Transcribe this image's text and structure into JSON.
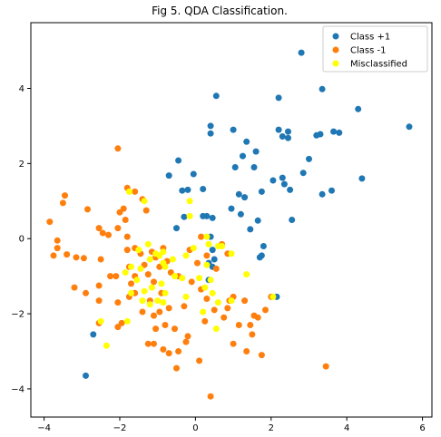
{
  "chart_data": {
    "type": "scatter",
    "title": "Fig 5. QDA Classification.",
    "xlim": [
      -4.35,
      6.25
    ],
    "ylim": [
      -4.75,
      5.75
    ],
    "xticks": [
      -4,
      -2,
      0,
      2,
      4,
      6
    ],
    "yticks": [
      -4,
      -2,
      0,
      2,
      4
    ],
    "grid": false,
    "legend_position": "top-right",
    "colors": {
      "class_pos": "#1f77b4",
      "class_neg": "#ff7f0e",
      "misclassified": "#ffff00",
      "axis": "#000000"
    },
    "series": [
      {
        "name": "Class +1",
        "color": "#1f77b4",
        "points": [
          [
            2.8,
            4.95
          ],
          [
            3.35,
            3.98
          ],
          [
            4.3,
            3.45
          ],
          [
            5.65,
            2.98
          ],
          [
            0.55,
            3.8
          ],
          [
            2.2,
            3.75
          ],
          [
            0.4,
            3.0
          ],
          [
            0.4,
            2.8
          ],
          [
            1.0,
            2.9
          ],
          [
            1.35,
            2.58
          ],
          [
            2.2,
            2.9
          ],
          [
            2.45,
            2.85
          ],
          [
            3.2,
            2.75
          ],
          [
            3.3,
            2.78
          ],
          [
            3.65,
            2.85
          ],
          [
            3.8,
            2.82
          ],
          [
            2.3,
            2.72
          ],
          [
            2.45,
            2.68
          ],
          [
            1.25,
            2.2
          ],
          [
            1.6,
            2.32
          ],
          [
            3.0,
            2.12
          ],
          [
            -0.45,
            2.08
          ],
          [
            1.05,
            1.9
          ],
          [
            1.55,
            1.9
          ],
          [
            2.85,
            1.75
          ],
          [
            -0.05,
            1.72
          ],
          [
            -0.7,
            1.68
          ],
          [
            2.3,
            1.62
          ],
          [
            2.05,
            1.55
          ],
          [
            1.75,
            1.25
          ],
          [
            2.35,
            1.45
          ],
          [
            2.5,
            1.3
          ],
          [
            3.35,
            1.18
          ],
          [
            3.6,
            1.28
          ],
          [
            4.4,
            1.6
          ],
          [
            -0.2,
            1.3
          ],
          [
            -0.35,
            1.28
          ],
          [
            0.2,
            1.32
          ],
          [
            1.15,
            1.18
          ],
          [
            1.3,
            1.1
          ],
          [
            0.3,
            0.6
          ],
          [
            0.2,
            0.6
          ],
          [
            0.95,
            0.8
          ],
          [
            1.2,
            0.65
          ],
          [
            0.45,
            0.55
          ],
          [
            1.65,
            0.48
          ],
          [
            2.55,
            0.5
          ],
          [
            -0.3,
            0.58
          ],
          [
            -0.5,
            0.28
          ],
          [
            1.45,
            0.25
          ],
          [
            0.4,
            0.05
          ],
          [
            0.45,
            -0.3
          ],
          [
            0.5,
            -0.55
          ],
          [
            0.35,
            -0.65
          ],
          [
            0.45,
            -0.75
          ],
          [
            1.8,
            -0.2
          ],
          [
            1.75,
            -0.45
          ],
          [
            1.7,
            -0.5
          ],
          [
            2.15,
            -1.55
          ],
          [
            -2.7,
            -2.55
          ],
          [
            -2.9,
            -3.65
          ],
          [
            0.35,
            -1.1
          ]
        ]
      },
      {
        "name": "Class -1",
        "color": "#ff7f0e",
        "points": [
          [
            -2.05,
            2.4
          ],
          [
            -3.45,
            1.15
          ],
          [
            -3.5,
            0.95
          ],
          [
            -1.4,
            1.05
          ],
          [
            -1.8,
            1.35
          ],
          [
            -1.6,
            1.25
          ],
          [
            -3.85,
            0.45
          ],
          [
            -3.65,
            -0.05
          ],
          [
            -2.85,
            0.78
          ],
          [
            -1.9,
            0.8
          ],
          [
            -2.55,
            0.28
          ],
          [
            -2.45,
            0.15
          ],
          [
            -2.3,
            0.1
          ],
          [
            -2.05,
            0.28
          ],
          [
            -1.3,
            0.75
          ],
          [
            -1.85,
            0.5
          ],
          [
            -2.0,
            0.7
          ],
          [
            -3.65,
            -0.25
          ],
          [
            -3.75,
            -0.45
          ],
          [
            -3.4,
            -0.42
          ],
          [
            -3.15,
            -0.5
          ],
          [
            -2.95,
            -0.52
          ],
          [
            -2.5,
            -0.55
          ],
          [
            -1.8,
            0.05
          ],
          [
            -3.2,
            -1.3
          ],
          [
            -2.9,
            -1.45
          ],
          [
            -2.55,
            -1.25
          ],
          [
            -2.55,
            -1.65
          ],
          [
            -2.05,
            -1.7
          ],
          [
            -1.6,
            -1.45
          ],
          [
            -1.75,
            -1.55
          ],
          [
            -1.2,
            -1.65
          ],
          [
            -0.9,
            -1.45
          ],
          [
            -1.25,
            -0.95
          ],
          [
            -1.1,
            -1.15
          ],
          [
            -1.6,
            -1.0
          ],
          [
            -0.45,
            -1.0
          ],
          [
            -0.1,
            -1.15
          ],
          [
            0.15,
            -1.35
          ],
          [
            -0.3,
            -1.8
          ],
          [
            -0.95,
            -1.95
          ],
          [
            -0.7,
            -1.85
          ],
          [
            -1.4,
            -1.95
          ],
          [
            -1.1,
            -2.05
          ],
          [
            -1.95,
            -2.25
          ],
          [
            -2.05,
            -2.35
          ],
          [
            -2.55,
            -2.25
          ],
          [
            -1.05,
            -2.4
          ],
          [
            -0.8,
            -2.3
          ],
          [
            -0.55,
            -2.4
          ],
          [
            -0.2,
            -2.6
          ],
          [
            -1.1,
            -2.8
          ],
          [
            -1.25,
            -2.8
          ],
          [
            -0.85,
            -2.95
          ],
          [
            -0.7,
            -3.05
          ],
          [
            -0.45,
            -3.0
          ],
          [
            -0.25,
            -2.75
          ],
          [
            -0.5,
            -3.45
          ],
          [
            0.1,
            -3.25
          ],
          [
            0.25,
            -2.2
          ],
          [
            0.85,
            -1.85
          ],
          [
            0.9,
            -1.65
          ],
          [
            1.0,
            -1.55
          ],
          [
            1.3,
            -1.65
          ],
          [
            1.15,
            -2.3
          ],
          [
            1.55,
            -2.05
          ],
          [
            1.45,
            -2.3
          ],
          [
            1.5,
            -2.55
          ],
          [
            1.65,
            -2.1
          ],
          [
            1.85,
            -1.9
          ],
          [
            2.0,
            -1.55
          ],
          [
            1.0,
            -2.8
          ],
          [
            1.35,
            -3.0
          ],
          [
            1.75,
            -3.1
          ],
          [
            0.4,
            -4.2
          ],
          [
            3.45,
            -3.4
          ],
          [
            -0.85,
            -0.25
          ],
          [
            -1.05,
            -0.5
          ],
          [
            -1.45,
            -0.4
          ],
          [
            -1.15,
            -0.35
          ],
          [
            -0.75,
            -0.6
          ],
          [
            -0.65,
            -0.9
          ],
          [
            -0.95,
            -0.75
          ],
          [
            -1.75,
            -0.75
          ],
          [
            -1.8,
            -0.3
          ],
          [
            -1.6,
            -0.25
          ],
          [
            -1.35,
            -0.7
          ],
          [
            -1.7,
            -1.2
          ],
          [
            -2.1,
            -1.0
          ],
          [
            -2.25,
            -1.0
          ],
          [
            0.05,
            -0.65
          ],
          [
            -0.15,
            -0.3
          ],
          [
            0.15,
            0.05
          ],
          [
            0.7,
            -0.15
          ],
          [
            0.85,
            -0.4
          ],
          [
            0.55,
            -0.8
          ],
          [
            0.3,
            -1.6
          ],
          [
            0.5,
            -1.9
          ],
          [
            0.75,
            -2.1
          ],
          [
            0.3,
            -0.45
          ]
        ]
      },
      {
        "name": "Misclassified",
        "color": "#ffff00",
        "points": [
          [
            -1.75,
            1.25
          ],
          [
            -1.35,
            1.0
          ],
          [
            -0.15,
            1.0
          ],
          [
            -0.15,
            0.6
          ],
          [
            0.3,
            0.05
          ],
          [
            0.35,
            -0.15
          ],
          [
            0.6,
            -0.2
          ],
          [
            0.7,
            -0.2
          ],
          [
            0.95,
            -0.4
          ],
          [
            0.3,
            -0.7
          ],
          [
            -1.5,
            -0.3
          ],
          [
            -1.2,
            -0.55
          ],
          [
            -1.25,
            -0.15
          ],
          [
            -1.05,
            -0.4
          ],
          [
            -0.95,
            -0.45
          ],
          [
            -0.85,
            -0.35
          ],
          [
            -0.85,
            -0.65
          ],
          [
            -0.6,
            -0.55
          ],
          [
            -0.25,
            -0.45
          ],
          [
            -0.05,
            -0.25
          ],
          [
            -1.7,
            -0.75
          ],
          [
            -1.45,
            -0.8
          ],
          [
            -0.8,
            -0.75
          ],
          [
            -0.55,
            -1.0
          ],
          [
            -0.35,
            -1.05
          ],
          [
            -1.85,
            -0.9
          ],
          [
            -1.55,
            -1.1
          ],
          [
            -1.15,
            -1.3
          ],
          [
            -0.9,
            -1.2
          ],
          [
            -0.8,
            -1.45
          ],
          [
            -1.35,
            -1.4
          ],
          [
            -1.7,
            -1.45
          ],
          [
            -1.4,
            -1.65
          ],
          [
            -1.0,
            -1.65
          ],
          [
            -0.85,
            -1.7
          ],
          [
            -0.25,
            -1.55
          ],
          [
            0.1,
            -1.05
          ],
          [
            0.25,
            -1.3
          ],
          [
            0.4,
            -1.1
          ],
          [
            0.45,
            -1.45
          ],
          [
            0.2,
            -1.95
          ],
          [
            0.6,
            -1.7
          ],
          [
            -1.8,
            -2.2
          ],
          [
            -2.5,
            -2.2
          ],
          [
            -2.35,
            -2.85
          ],
          [
            0.55,
            -2.4
          ],
          [
            1.35,
            -0.95
          ],
          [
            2.05,
            -1.55
          ],
          [
            -1.2,
            -1.75
          ],
          [
            0.95,
            -1.65
          ]
        ]
      }
    ]
  }
}
